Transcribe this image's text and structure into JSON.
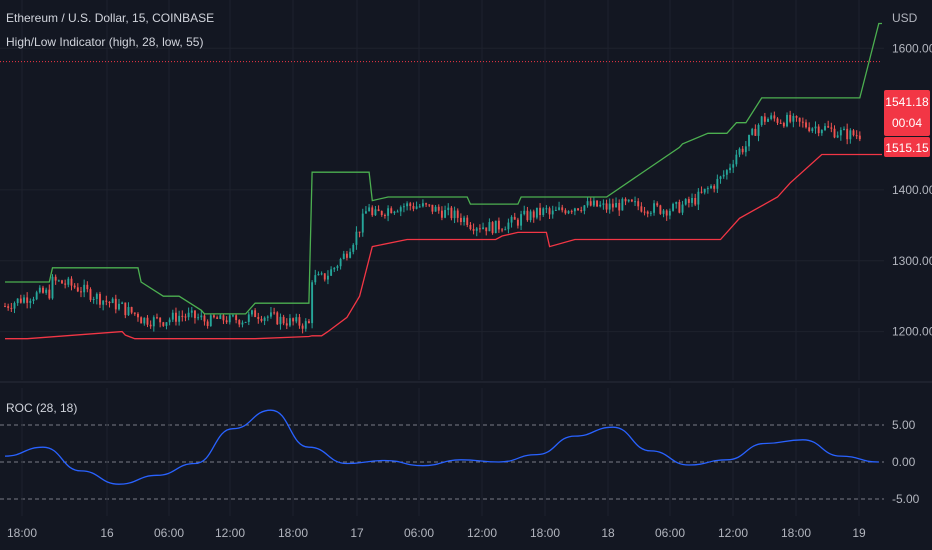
{
  "header": {
    "title": "Ethereum / U.S. Dollar, 15, COINBASE",
    "indicator": "High/Low Indicator (high, 28, low, 55)",
    "currency": "USD"
  },
  "price_tags": {
    "last": "1541.18",
    "countdown": "00:04",
    "low": "1515.15"
  },
  "roc_panel": {
    "title": "ROC (28, 18)"
  },
  "colors": {
    "background": "#131722",
    "grid": "#1e222d",
    "up": "#26a69a",
    "down": "#ef5350",
    "high_line": "#4caf50",
    "low_line": "#f23645",
    "roc_line": "#2962ff",
    "tag": "#f23645"
  },
  "chart_data": [
    {
      "type": "candlestick",
      "title": "Ethereum / U.S. Dollar, 15, COINBASE",
      "ylabel": "USD",
      "ylim": [
        1170,
        1660
      ],
      "y_ticks": [
        "1600.00",
        "1400.00",
        "1300.00",
        "1200.00"
      ],
      "y_tick_values": [
        1600,
        1400,
        1300,
        1200
      ],
      "x_ticks": [
        "18:00",
        "16",
        "06:00",
        "12:00",
        "18:00",
        "17",
        "06:00",
        "12:00",
        "18:00",
        "18",
        "06:00",
        "12:00",
        "18:00",
        "19"
      ],
      "series": [
        {
          "name": "high",
          "x": [
            0,
            14,
            15,
            42,
            43,
            50,
            55,
            62,
            63,
            76,
            79,
            96,
            97,
            100,
            115,
            116,
            121,
            146,
            147,
            151,
            162,
            163,
            181,
            182,
            190,
            213,
            214,
            222,
            228,
            231,
            234,
            239,
            246,
            270,
            276,
            277
          ],
          "values": [
            1270,
            1270,
            1290,
            1290,
            1270,
            1250,
            1250,
            1230,
            1225,
            1225,
            1240,
            1240,
            1425,
            1425,
            1425,
            1385,
            1390,
            1390,
            1380,
            1380,
            1380,
            1390,
            1390,
            1390,
            1390,
            1460,
            1465,
            1480,
            1480,
            1495,
            1495,
            1530,
            1530,
            1530,
            1635,
            1635
          ]
        },
        {
          "name": "low",
          "x": [
            0,
            7,
            37,
            38,
            41,
            79,
            96,
            97,
            100,
            102,
            108,
            112,
            116,
            127,
            128,
            146,
            155,
            157,
            162,
            171,
            172,
            180,
            193,
            200,
            214,
            226,
            232,
            240,
            244,
            248,
            258,
            277
          ],
          "values": [
            1190,
            1190,
            1200,
            1195,
            1190,
            1190,
            1193,
            1194,
            1194,
            1200,
            1220,
            1250,
            1320,
            1330,
            1330,
            1330,
            1330,
            1335,
            1340,
            1340,
            1320,
            1330,
            1330,
            1330,
            1330,
            1330,
            1360,
            1380,
            1390,
            1410,
            1450,
            1450
          ]
        }
      ]
    },
    {
      "type": "line",
      "title": "ROC (28, 18)",
      "ylim": [
        -5.5,
        8
      ],
      "y_ticks": [
        "5.00",
        "0.00",
        "-5.00"
      ],
      "y_tick_values": [
        5,
        0,
        -5
      ],
      "series": [
        {
          "name": "ROC",
          "x": [
            0,
            12,
            24,
            36,
            48,
            60,
            72,
            84,
            96,
            108,
            120,
            132,
            144,
            156,
            168,
            180,
            192,
            204,
            216,
            228,
            240,
            252,
            264,
            276
          ],
          "values": [
            0.8,
            2.0,
            -1.2,
            -3.0,
            -1.8,
            -0.2,
            4.5,
            7.0,
            2.0,
            -0.2,
            0.2,
            -0.5,
            0.3,
            0.0,
            1.0,
            3.5,
            4.7,
            1.5,
            -0.4,
            0.3,
            2.5,
            3.0,
            0.8,
            0.0
          ]
        }
      ]
    }
  ]
}
